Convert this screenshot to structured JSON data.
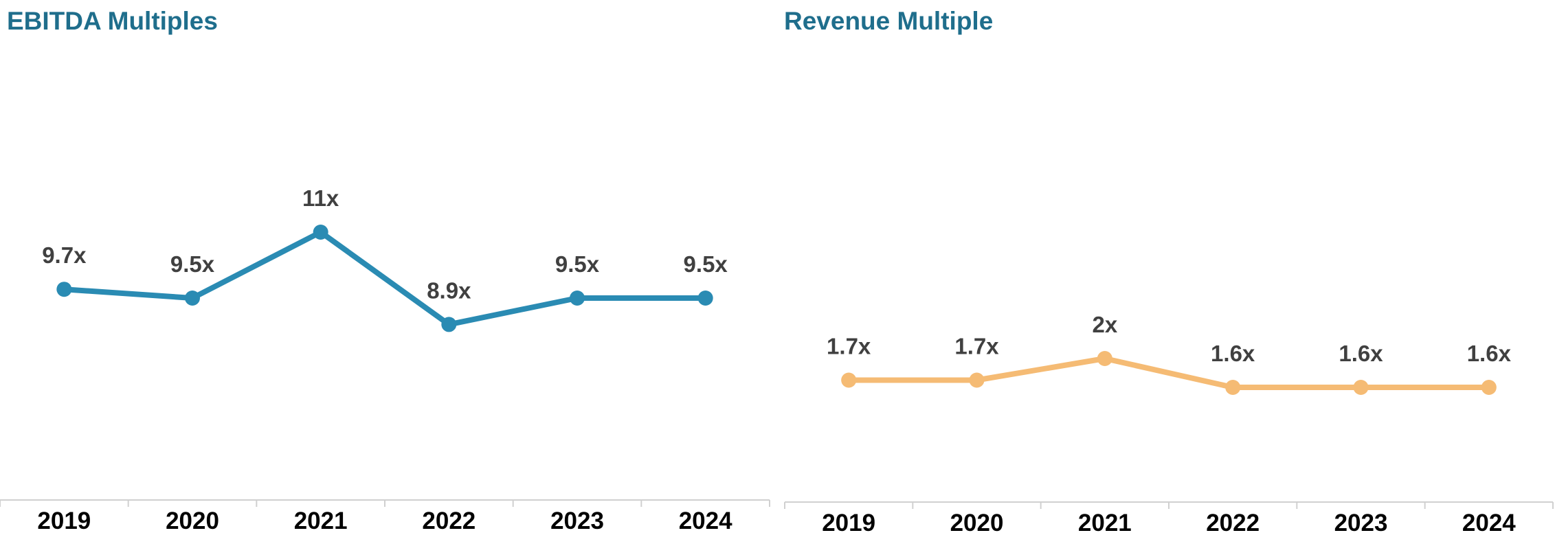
{
  "chart_data": [
    {
      "type": "line",
      "title": "EBITDA Multiples",
      "categories": [
        "2019",
        "2020",
        "2021",
        "2022",
        "2023",
        "2024"
      ],
      "values": [
        9.7,
        9.5,
        11,
        8.9,
        9.5,
        9.5
      ],
      "data_labels": [
        "9.7x",
        "9.5x",
        "11x",
        "8.9x",
        "9.5x",
        "9.5x"
      ],
      "color": "#2A8BB3",
      "grid": false,
      "legend": "none",
      "y_axis_visible": false
    },
    {
      "type": "line",
      "title": "Revenue Multiple",
      "categories": [
        "2019",
        "2020",
        "2021",
        "2022",
        "2023",
        "2024"
      ],
      "values": [
        1.7,
        1.7,
        2,
        1.6,
        1.6,
        1.6
      ],
      "data_labels": [
        "1.7x",
        "1.7x",
        "2x",
        "1.6x",
        "1.6x",
        "1.6x"
      ],
      "color": "#F5BB74",
      "grid": false,
      "legend": "none",
      "y_axis_visible": false
    }
  ],
  "styles": {
    "title_color": "#1F6E8C",
    "data_label_color": "#404040",
    "tick_label_color": "#000000",
    "axis_line_color": "#D0D0D0"
  }
}
